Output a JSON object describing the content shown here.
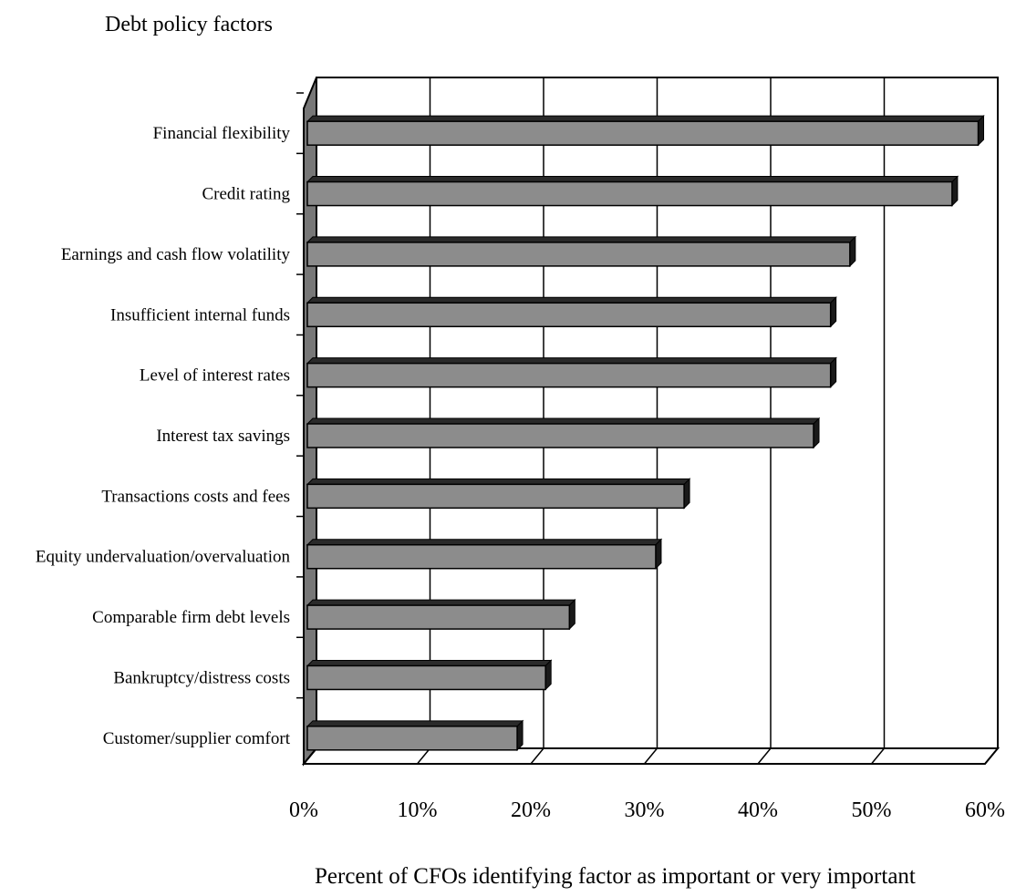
{
  "chart_data": {
    "type": "bar",
    "orientation": "horizontal",
    "style": "3d",
    "title": "Debt policy factors",
    "xlabel": "Percent of CFOs identifying factor as important or very important",
    "ylabel": "",
    "categories": [
      "Financial flexibility",
      "Credit rating",
      "Earnings and cash flow volatility",
      "Insufficient internal funds",
      "Level of interest rates",
      "Interest tax savings",
      "Transactions costs and fees",
      "Equity undervaluation/overvaluation",
      "Comparable firm debt levels",
      "Bankruptcy/distress costs",
      "Customer/supplier comfort"
    ],
    "values": [
      59.4,
      57.1,
      48.1,
      46.4,
      46.4,
      44.9,
      33.5,
      31.0,
      23.4,
      21.3,
      18.8
    ],
    "xlim": [
      0,
      60
    ],
    "xticks": [
      "0%",
      "10%",
      "20%",
      "30%",
      "40%",
      "50%",
      "60%"
    ],
    "grid": true,
    "colors": {
      "bar_face": "#8c8c8c",
      "bar_top": "#2a2a2a",
      "bar_side": "#1a1a1a",
      "left_wall": "#777777",
      "frame": "#000000"
    }
  }
}
